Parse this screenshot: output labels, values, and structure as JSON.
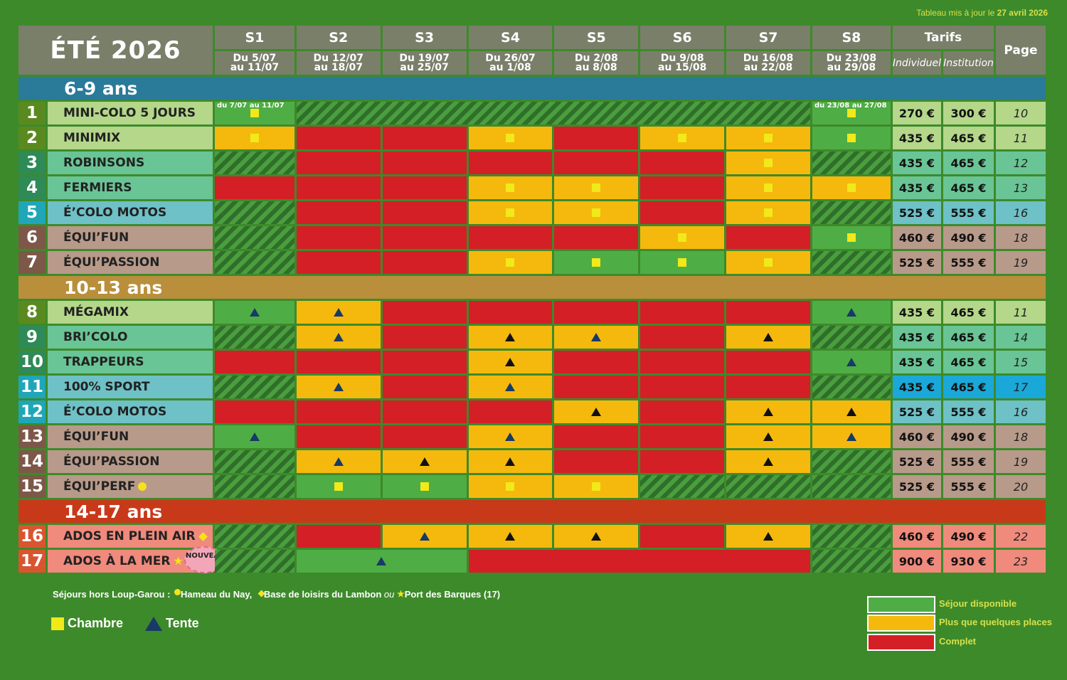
{
  "updated_prefix": "Tableau mis à jour le",
  "updated_date": "27 avril 2026",
  "title": "ÉTÉ 2026",
  "weeks": [
    {
      "label": "S1",
      "from": "Du 5/07",
      "to": "au 11/07"
    },
    {
      "label": "S2",
      "from": "Du 12/07",
      "to": "au 18/07"
    },
    {
      "label": "S3",
      "from": "Du 19/07",
      "to": "au 25/07"
    },
    {
      "label": "S4",
      "from": "Du 26/07",
      "to": "au 1/08"
    },
    {
      "label": "S5",
      "from": "Du 2/08",
      "to": "au 8/08"
    },
    {
      "label": "S6",
      "from": "Du 9/08",
      "to": "au 15/08"
    },
    {
      "label": "S7",
      "from": "Du 16/08",
      "to": "au 22/08"
    },
    {
      "label": "S8",
      "from": "Du 23/08",
      "to": "au 29/08"
    }
  ],
  "tarifs_header": "Tarifs",
  "tarif_individuel": "Individuel",
  "tarif_institution": "Institution",
  "page_header": "Page",
  "colors": {
    "available": "#4fad45",
    "few_places": "#f5b90d",
    "full": "#d41f26"
  },
  "sections": [
    {
      "label": "6-9 ans",
      "color": "#2a7a99",
      "rows": [
        {
          "num": "1",
          "name": "MINI-COLO 5 JOURS",
          "color": "#b4d78a",
          "numColor": "#5a8a1f",
          "ind": "270 €",
          "inst": "300 €",
          "page": "10",
          "cells": [
            {
              "s": "G",
              "m": "sq",
              "note": "du 7/07 au 11/07"
            },
            {
              "s": "H",
              "span": 6
            },
            {
              "s": "G",
              "m": "sq",
              "note": "du 23/08 au 27/08"
            }
          ]
        },
        {
          "num": "2",
          "name": "MINIMIX",
          "color": "#b4d78a",
          "numColor": "#5a8a1f",
          "ind": "435 €",
          "inst": "465 €",
          "page": "11",
          "cells": [
            {
              "s": "Y",
              "m": "sq"
            },
            {
              "s": "R"
            },
            {
              "s": "R"
            },
            {
              "s": "Y",
              "m": "sq"
            },
            {
              "s": "R"
            },
            {
              "s": "Y",
              "m": "sq"
            },
            {
              "s": "Y",
              "m": "sq"
            },
            {
              "s": "G",
              "m": "sq"
            }
          ]
        },
        {
          "num": "3",
          "name": "ROBINSONS",
          "color": "#69c595",
          "numColor": "#2e8a57",
          "ind": "435 €",
          "inst": "465 €",
          "page": "12",
          "cells": [
            {
              "s": "H"
            },
            {
              "s": "R"
            },
            {
              "s": "R"
            },
            {
              "s": "R"
            },
            {
              "s": "R"
            },
            {
              "s": "R"
            },
            {
              "s": "Y",
              "m": "sq"
            },
            {
              "s": "H"
            }
          ]
        },
        {
          "num": "4",
          "name": "FERMIERS",
          "color": "#69c595",
          "numColor": "#2e8a57",
          "ind": "435 €",
          "inst": "465 €",
          "page": "13",
          "cells": [
            {
              "s": "R"
            },
            {
              "s": "R"
            },
            {
              "s": "R"
            },
            {
              "s": "Y",
              "m": "sq"
            },
            {
              "s": "Y",
              "m": "sq"
            },
            {
              "s": "R"
            },
            {
              "s": "Y",
              "m": "sq"
            },
            {
              "s": "Y",
              "m": "sq"
            }
          ]
        },
        {
          "num": "5",
          "name": "É’COLO MOTOS",
          "color": "#6ec1c6",
          "numColor": "#1fa6b8",
          "ind": "525 €",
          "inst": "555 €",
          "page": "16",
          "cells": [
            {
              "s": "H"
            },
            {
              "s": "R"
            },
            {
              "s": "R"
            },
            {
              "s": "Y",
              "m": "sq"
            },
            {
              "s": "Y",
              "m": "sq"
            },
            {
              "s": "R"
            },
            {
              "s": "Y",
              "m": "sq"
            },
            {
              "s": "H"
            }
          ]
        },
        {
          "num": "6",
          "name": "ÉQUI’FUN",
          "color": "#b89a8a",
          "numColor": "#7d5848",
          "ind": "460 €",
          "inst": "490 €",
          "page": "18",
          "cells": [
            {
              "s": "H"
            },
            {
              "s": "R"
            },
            {
              "s": "R"
            },
            {
              "s": "R"
            },
            {
              "s": "R"
            },
            {
              "s": "Y",
              "m": "sq"
            },
            {
              "s": "R"
            },
            {
              "s": "G",
              "m": "sq"
            }
          ]
        },
        {
          "num": "7",
          "name": "ÉQUI’PASSION",
          "color": "#b89a8a",
          "numColor": "#7d5848",
          "ind": "525 €",
          "inst": "555 €",
          "page": "19",
          "cells": [
            {
              "s": "H"
            },
            {
              "s": "R"
            },
            {
              "s": "R"
            },
            {
              "s": "Y",
              "m": "sq"
            },
            {
              "s": "G",
              "m": "sq"
            },
            {
              "s": "G",
              "m": "sq"
            },
            {
              "s": "Y",
              "m": "sq"
            },
            {
              "s": "H"
            }
          ]
        }
      ]
    },
    {
      "label": "10-13 ans",
      "color": "#b98f3c",
      "rows": [
        {
          "num": "8",
          "name": "MÉGAMIX",
          "color": "#b4d78a",
          "numColor": "#5a8a1f",
          "ind": "435 €",
          "inst": "465 €",
          "page": "11",
          "cells": [
            {
              "s": "G",
              "m": "tri"
            },
            {
              "s": "Y",
              "m": "tri"
            },
            {
              "s": "R"
            },
            {
              "s": "R"
            },
            {
              "s": "R"
            },
            {
              "s": "R"
            },
            {
              "s": "R"
            },
            {
              "s": "G",
              "m": "tri"
            }
          ]
        },
        {
          "num": "9",
          "name": "BRI’COLO",
          "color": "#69c595",
          "numColor": "#2e8a57",
          "ind": "435 €",
          "inst": "465 €",
          "page": "14",
          "cells": [
            {
              "s": "H"
            },
            {
              "s": "Y",
              "m": "tri"
            },
            {
              "s": "R"
            },
            {
              "s": "Y",
              "m": "trib"
            },
            {
              "s": "Y",
              "m": "tri"
            },
            {
              "s": "R"
            },
            {
              "s": "Y",
              "m": "trib"
            },
            {
              "s": "H"
            }
          ]
        },
        {
          "num": "10",
          "name": "TRAPPEURS",
          "color": "#69c595",
          "numColor": "#2e8a57",
          "ind": "435 €",
          "inst": "465 €",
          "page": "15",
          "cells": [
            {
              "s": "R"
            },
            {
              "s": "R"
            },
            {
              "s": "R"
            },
            {
              "s": "Y",
              "m": "trib"
            },
            {
              "s": "R"
            },
            {
              "s": "R"
            },
            {
              "s": "R"
            },
            {
              "s": "G",
              "m": "tri"
            }
          ]
        },
        {
          "num": "11",
          "name": "100% SPORT",
          "color": "#6ec1c6",
          "numColor": "#1fa6b8",
          "ind": "435 €",
          "inst": "465 €",
          "page": "17",
          "priceColor": "#1aa8d8",
          "cells": [
            {
              "s": "H"
            },
            {
              "s": "Y",
              "m": "tri"
            },
            {
              "s": "R"
            },
            {
              "s": "Y",
              "m": "tri"
            },
            {
              "s": "R"
            },
            {
              "s": "R"
            },
            {
              "s": "R"
            },
            {
              "s": "H"
            }
          ]
        },
        {
          "num": "12",
          "name": "É’COLO MOTOS",
          "color": "#6ec1c6",
          "numColor": "#1fa6b8",
          "ind": "525 €",
          "inst": "555 €",
          "page": "16",
          "cells": [
            {
              "s": "R"
            },
            {
              "s": "R"
            },
            {
              "s": "R"
            },
            {
              "s": "R"
            },
            {
              "s": "Y",
              "m": "trib"
            },
            {
              "s": "R"
            },
            {
              "s": "Y",
              "m": "trib"
            },
            {
              "s": "Y",
              "m": "trib"
            }
          ]
        },
        {
          "num": "13",
          "name": "ÉQUI’FUN",
          "color": "#b89a8a",
          "numColor": "#7d5848",
          "ind": "460 €",
          "inst": "490 €",
          "page": "18",
          "cells": [
            {
              "s": "G",
              "m": "tri"
            },
            {
              "s": "R"
            },
            {
              "s": "R"
            },
            {
              "s": "Y",
              "m": "tri"
            },
            {
              "s": "R"
            },
            {
              "s": "R"
            },
            {
              "s": "Y",
              "m": "trib"
            },
            {
              "s": "Y",
              "m": "tri"
            }
          ]
        },
        {
          "num": "14",
          "name": "ÉQUI’PASSION",
          "color": "#b89a8a",
          "numColor": "#7d5848",
          "ind": "525 €",
          "inst": "555 €",
          "page": "19",
          "cells": [
            {
              "s": "H"
            },
            {
              "s": "Y",
              "m": "tri"
            },
            {
              "s": "Y",
              "m": "trib"
            },
            {
              "s": "Y",
              "m": "trib"
            },
            {
              "s": "R"
            },
            {
              "s": "R"
            },
            {
              "s": "Y",
              "m": "trib"
            },
            {
              "s": "H"
            }
          ]
        },
        {
          "num": "15",
          "name": "ÉQUI’PERF",
          "color": "#b89a8a",
          "numColor": "#7d5848",
          "ind": "525 €",
          "inst": "555 €",
          "page": "20",
          "marker": "dot",
          "cells": [
            {
              "s": "H"
            },
            {
              "s": "G",
              "m": "sq"
            },
            {
              "s": "G",
              "m": "sq"
            },
            {
              "s": "Y",
              "m": "sq"
            },
            {
              "s": "Y",
              "m": "sq"
            },
            {
              "s": "H"
            },
            {
              "s": "H"
            },
            {
              "s": "H"
            }
          ]
        }
      ]
    },
    {
      "label": "14-17 ans",
      "color": "#c8391a",
      "rows": [
        {
          "num": "16",
          "name": "ADOS EN PLEIN AIR",
          "color": "#f08a7c",
          "numColor": "#d9552f",
          "ind": "460 €",
          "inst": "490 €",
          "page": "22",
          "marker": "diamond",
          "cells": [
            {
              "s": "H"
            },
            {
              "s": "R"
            },
            {
              "s": "Y",
              "m": "tri"
            },
            {
              "s": "Y",
              "m": "trib"
            },
            {
              "s": "Y",
              "m": "trib"
            },
            {
              "s": "R"
            },
            {
              "s": "Y",
              "m": "trib"
            },
            {
              "s": "H"
            }
          ]
        },
        {
          "num": "17",
          "name": "ADOS À LA MER",
          "color": "#f08a7c",
          "numColor": "#d9552f",
          "ind": "900 €",
          "inst": "930 €",
          "page": "23",
          "marker": "star",
          "badge": "NOUVEAU LIEU",
          "cells": [
            {
              "s": "H"
            },
            {
              "s": "G",
              "m": "tri",
              "span": 2
            },
            {
              "s": "R",
              "span": 4
            },
            {
              "s": "H"
            }
          ]
        }
      ]
    }
  ],
  "footnote": {
    "prefix": "Séjours hors Loup-Garou :",
    "loc1": "Hameau du Nay,",
    "loc2": "Base de loisirs du Lambon",
    "ou": "ou",
    "loc3": "Port des Barques (17)"
  },
  "legend_chambre": "Chambre",
  "legend_tente": "Tente",
  "legend_available": "Séjour disponible",
  "legend_few": "Plus que quelques places",
  "legend_full": "Complet"
}
